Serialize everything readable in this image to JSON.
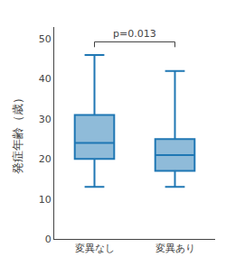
{
  "chart_data": {
    "type": "box",
    "categories": [
      "変異なし",
      "変異あり"
    ],
    "whisker_low": [
      13,
      13
    ],
    "q1": [
      20,
      17
    ],
    "median": [
      24,
      21
    ],
    "q3": [
      31,
      25
    ],
    "whisker_high": [
      46,
      42
    ],
    "ylabel": "発症年齢（歳）",
    "annotations": [
      {
        "text": "p=0.013"
      }
    ],
    "ylim": [
      0,
      53
    ],
    "yticks": [
      0,
      10,
      20,
      30,
      40,
      50
    ],
    "grid": false
  }
}
